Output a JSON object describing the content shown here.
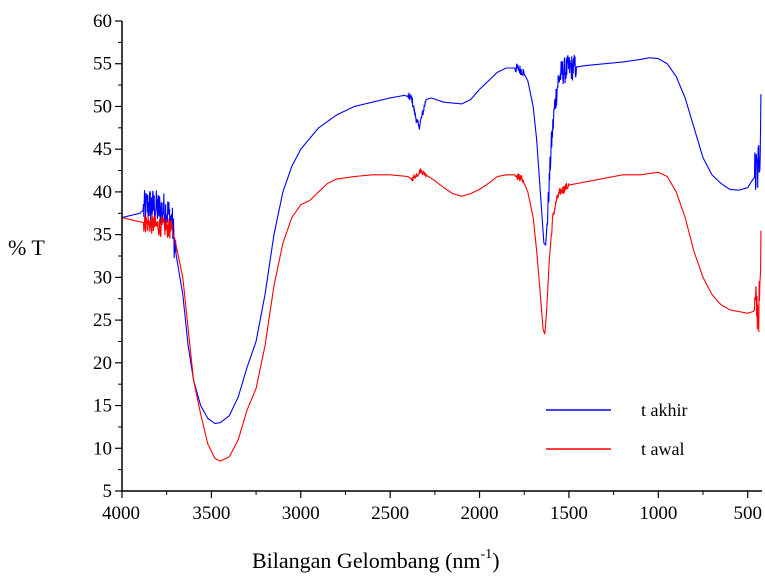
{
  "chart_data": {
    "type": "line",
    "title": "",
    "xlabel": "Bilangan Gelombang (nm",
    "xlabel_sup": "-1",
    "xlabel_close": ")",
    "ylabel": "% T",
    "xlim": [
      4000,
      420
    ],
    "ylim": [
      5,
      60
    ],
    "x_reversed": true,
    "x_ticks": [
      4000,
      3500,
      3000,
      2500,
      2000,
      1500,
      1000,
      500
    ],
    "y_ticks": [
      5,
      10,
      15,
      20,
      25,
      30,
      35,
      40,
      45,
      50,
      55,
      60
    ],
    "grid": false,
    "legend_position": "bottom-right",
    "series": [
      {
        "name": "t akhir",
        "color": "#0000ff",
        "noise": [
          [
            3880,
            3700,
            2.2
          ],
          [
            2400,
            2300,
            0.5
          ],
          [
            1800,
            1750,
            0.6
          ],
          [
            1620,
            1460,
            1.6
          ],
          [
            460,
            420,
            3.5
          ]
        ],
        "points": [
          [
            4000,
            37.0
          ],
          [
            3900,
            37.5
          ],
          [
            3850,
            38.5
          ],
          [
            3800,
            38.0
          ],
          [
            3750,
            37.8
          ],
          [
            3720,
            36.5
          ],
          [
            3700,
            33.0
          ],
          [
            3660,
            28.0
          ],
          [
            3630,
            22.0
          ],
          [
            3600,
            18.0
          ],
          [
            3560,
            15.0
          ],
          [
            3520,
            13.5
          ],
          [
            3480,
            12.9
          ],
          [
            3450,
            13.0
          ],
          [
            3400,
            13.8
          ],
          [
            3350,
            16.0
          ],
          [
            3300,
            19.5
          ],
          [
            3250,
            22.5
          ],
          [
            3200,
            28.0
          ],
          [
            3150,
            35.0
          ],
          [
            3100,
            40.0
          ],
          [
            3050,
            43.0
          ],
          [
            3000,
            45.0
          ],
          [
            2900,
            47.5
          ],
          [
            2800,
            49.0
          ],
          [
            2700,
            50.0
          ],
          [
            2600,
            50.5
          ],
          [
            2500,
            51.0
          ],
          [
            2420,
            51.3
          ],
          [
            2380,
            51.0
          ],
          [
            2360,
            49.0
          ],
          [
            2340,
            47.5
          ],
          [
            2320,
            49.0
          ],
          [
            2300,
            50.8
          ],
          [
            2270,
            51.0
          ],
          [
            2200,
            50.5
          ],
          [
            2100,
            50.3
          ],
          [
            2050,
            50.8
          ],
          [
            2000,
            52.0
          ],
          [
            1950,
            53.0
          ],
          [
            1900,
            54.0
          ],
          [
            1850,
            54.5
          ],
          [
            1800,
            54.5
          ],
          [
            1760,
            54.2
          ],
          [
            1730,
            53.0
          ],
          [
            1700,
            50.0
          ],
          [
            1680,
            46.0
          ],
          [
            1660,
            40.0
          ],
          [
            1640,
            34.0
          ],
          [
            1630,
            33.8
          ],
          [
            1620,
            37.0
          ],
          [
            1600,
            45.0
          ],
          [
            1580,
            50.0
          ],
          [
            1560,
            53.0
          ],
          [
            1540,
            54.0
          ],
          [
            1500,
            54.5
          ],
          [
            1400,
            54.8
          ],
          [
            1300,
            55.0
          ],
          [
            1200,
            55.2
          ],
          [
            1100,
            55.5
          ],
          [
            1050,
            55.7
          ],
          [
            1000,
            55.6
          ],
          [
            950,
            55.0
          ],
          [
            900,
            53.5
          ],
          [
            850,
            51.0
          ],
          [
            800,
            47.5
          ],
          [
            750,
            44.0
          ],
          [
            700,
            42.0
          ],
          [
            650,
            41.0
          ],
          [
            600,
            40.3
          ],
          [
            550,
            40.2
          ],
          [
            500,
            40.5
          ],
          [
            470,
            41.5
          ],
          [
            450,
            42.0
          ],
          [
            440,
            43.0
          ],
          [
            430,
            46.0
          ],
          [
            425,
            53.0
          ]
        ]
      },
      {
        "name": "t awal",
        "color": "#ff0000",
        "noise": [
          [
            3880,
            3720,
            1.2
          ],
          [
            2380,
            2300,
            0.3
          ],
          [
            1800,
            1750,
            0.4
          ],
          [
            1600,
            1500,
            0.5
          ],
          [
            460,
            420,
            3.0
          ]
        ],
        "points": [
          [
            4000,
            37.0
          ],
          [
            3900,
            36.5
          ],
          [
            3850,
            36.3
          ],
          [
            3800,
            36.0
          ],
          [
            3750,
            35.8
          ],
          [
            3720,
            35.5
          ],
          [
            3700,
            34.0
          ],
          [
            3660,
            30.0
          ],
          [
            3630,
            24.0
          ],
          [
            3600,
            18.0
          ],
          [
            3560,
            14.0
          ],
          [
            3520,
            10.5
          ],
          [
            3480,
            8.8
          ],
          [
            3450,
            8.5
          ],
          [
            3400,
            9.0
          ],
          [
            3350,
            11.0
          ],
          [
            3300,
            14.5
          ],
          [
            3250,
            17.0
          ],
          [
            3200,
            22.0
          ],
          [
            3150,
            29.0
          ],
          [
            3100,
            34.0
          ],
          [
            3050,
            37.0
          ],
          [
            3000,
            38.5
          ],
          [
            2950,
            39.0
          ],
          [
            2900,
            40.0
          ],
          [
            2850,
            41.0
          ],
          [
            2800,
            41.5
          ],
          [
            2700,
            41.8
          ],
          [
            2600,
            42.0
          ],
          [
            2500,
            42.0
          ],
          [
            2400,
            41.8
          ],
          [
            2380,
            41.5
          ],
          [
            2350,
            42.0
          ],
          [
            2330,
            42.5
          ],
          [
            2300,
            42.0
          ],
          [
            2250,
            41.3
          ],
          [
            2200,
            40.5
          ],
          [
            2150,
            39.8
          ],
          [
            2100,
            39.5
          ],
          [
            2050,
            39.8
          ],
          [
            2000,
            40.3
          ],
          [
            1950,
            41.0
          ],
          [
            1900,
            41.8
          ],
          [
            1850,
            42.0
          ],
          [
            1800,
            42.0
          ],
          [
            1760,
            41.5
          ],
          [
            1730,
            40.0
          ],
          [
            1700,
            37.0
          ],
          [
            1680,
            33.0
          ],
          [
            1660,
            28.0
          ],
          [
            1645,
            24.0
          ],
          [
            1635,
            23.3
          ],
          [
            1625,
            26.0
          ],
          [
            1610,
            32.0
          ],
          [
            1590,
            37.0
          ],
          [
            1570,
            39.0
          ],
          [
            1550,
            40.0
          ],
          [
            1500,
            40.8
          ],
          [
            1400,
            41.2
          ],
          [
            1300,
            41.6
          ],
          [
            1200,
            42.0
          ],
          [
            1100,
            42.0
          ],
          [
            1000,
            42.3
          ],
          [
            950,
            41.8
          ],
          [
            900,
            40.0
          ],
          [
            850,
            37.0
          ],
          [
            800,
            33.0
          ],
          [
            750,
            30.0
          ],
          [
            700,
            28.0
          ],
          [
            650,
            26.8
          ],
          [
            600,
            26.2
          ],
          [
            550,
            26.0
          ],
          [
            500,
            25.8
          ],
          [
            470,
            26.0
          ],
          [
            450,
            26.5
          ],
          [
            440,
            26.0
          ],
          [
            430,
            28.0
          ],
          [
            425,
            35.5
          ]
        ]
      }
    ]
  }
}
